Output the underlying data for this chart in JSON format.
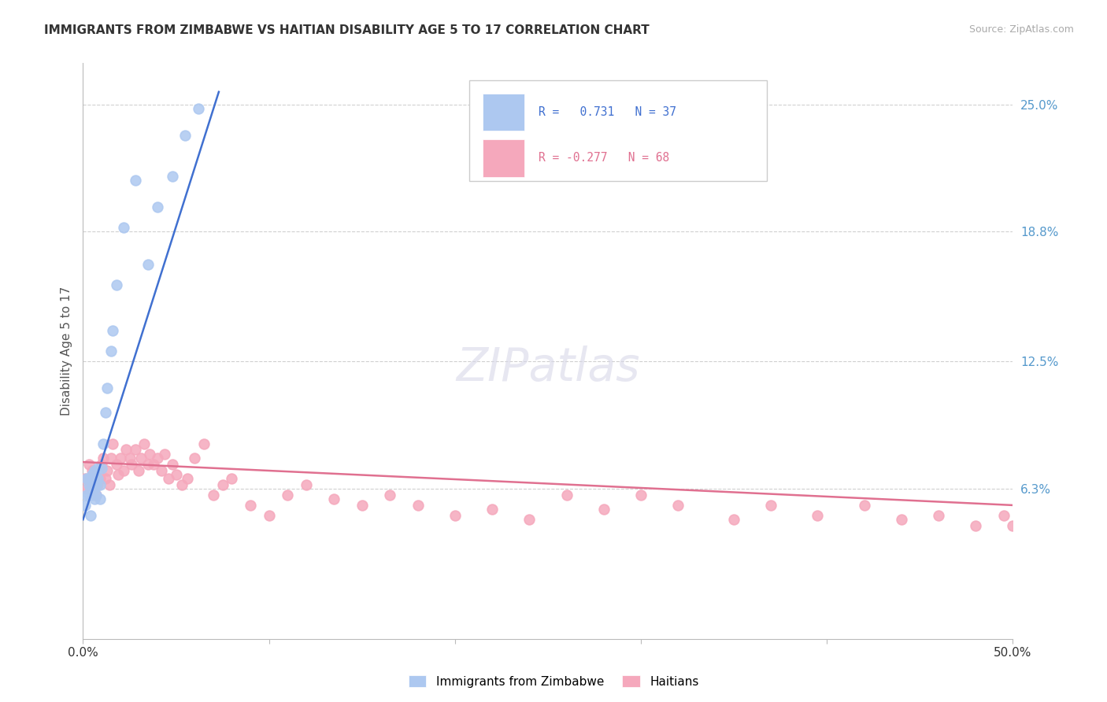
{
  "title": "IMMIGRANTS FROM ZIMBABWE VS HAITIAN DISABILITY AGE 5 TO 17 CORRELATION CHART",
  "source": "Source: ZipAtlas.com",
  "ylabel": "Disability Age 5 to 17",
  "xlim": [
    0.0,
    0.5
  ],
  "ylim": [
    -0.01,
    0.27
  ],
  "yticks_right": [
    0.063,
    0.125,
    0.188,
    0.25
  ],
  "ytick_labels_right": [
    "6.3%",
    "12.5%",
    "18.8%",
    "25.0%"
  ],
  "legend_label1": "Immigrants from Zimbabwe",
  "legend_label2": "Haitians",
  "blue_color": "#adc8f0",
  "pink_color": "#f5a8bc",
  "blue_line_color": "#4070d0",
  "pink_line_color": "#e07090",
  "background_color": "#ffffff",
  "grid_color": "#d0d0d0",
  "blue_x": [
    0.001,
    0.002,
    0.002,
    0.003,
    0.003,
    0.003,
    0.004,
    0.004,
    0.004,
    0.005,
    0.005,
    0.005,
    0.005,
    0.006,
    0.006,
    0.006,
    0.006,
    0.007,
    0.007,
    0.008,
    0.008,
    0.009,
    0.009,
    0.01,
    0.011,
    0.012,
    0.013,
    0.015,
    0.016,
    0.018,
    0.022,
    0.028,
    0.035,
    0.04,
    0.048,
    0.055,
    0.062
  ],
  "blue_y": [
    0.055,
    0.06,
    0.068,
    0.06,
    0.065,
    0.068,
    0.05,
    0.063,
    0.068,
    0.06,
    0.065,
    0.068,
    0.07,
    0.058,
    0.063,
    0.068,
    0.072,
    0.06,
    0.065,
    0.068,
    0.073,
    0.058,
    0.065,
    0.073,
    0.085,
    0.1,
    0.112,
    0.13,
    0.14,
    0.162,
    0.19,
    0.213,
    0.172,
    0.2,
    0.215,
    0.235,
    0.248
  ],
  "pink_x": [
    0.001,
    0.002,
    0.003,
    0.004,
    0.005,
    0.005,
    0.006,
    0.007,
    0.008,
    0.009,
    0.01,
    0.011,
    0.012,
    0.013,
    0.014,
    0.015,
    0.016,
    0.018,
    0.019,
    0.02,
    0.022,
    0.023,
    0.025,
    0.026,
    0.028,
    0.03,
    0.031,
    0.033,
    0.035,
    0.036,
    0.038,
    0.04,
    0.042,
    0.044,
    0.046,
    0.048,
    0.05,
    0.053,
    0.056,
    0.06,
    0.065,
    0.07,
    0.075,
    0.08,
    0.09,
    0.1,
    0.11,
    0.12,
    0.135,
    0.15,
    0.165,
    0.18,
    0.2,
    0.22,
    0.24,
    0.26,
    0.28,
    0.3,
    0.32,
    0.35,
    0.37,
    0.395,
    0.42,
    0.44,
    0.46,
    0.48,
    0.495,
    0.5
  ],
  "pink_y": [
    0.068,
    0.063,
    0.075,
    0.068,
    0.072,
    0.063,
    0.07,
    0.06,
    0.065,
    0.068,
    0.075,
    0.078,
    0.068,
    0.072,
    0.065,
    0.078,
    0.085,
    0.075,
    0.07,
    0.078,
    0.072,
    0.082,
    0.078,
    0.075,
    0.082,
    0.072,
    0.078,
    0.085,
    0.075,
    0.08,
    0.075,
    0.078,
    0.072,
    0.08,
    0.068,
    0.075,
    0.07,
    0.065,
    0.068,
    0.078,
    0.085,
    0.06,
    0.065,
    0.068,
    0.055,
    0.05,
    0.06,
    0.065,
    0.058,
    0.055,
    0.06,
    0.055,
    0.05,
    0.053,
    0.048,
    0.06,
    0.053,
    0.06,
    0.055,
    0.048,
    0.055,
    0.05,
    0.055,
    0.048,
    0.05,
    0.045,
    0.05,
    0.045
  ],
  "blue_trend_x": [
    0.0,
    0.073
  ],
  "blue_trend_y_start": 0.048,
  "blue_trend_slope": 2.85,
  "pink_trend_x": [
    0.0,
    0.5
  ],
  "pink_trend_y_start": 0.076,
  "pink_trend_slope": -0.042
}
